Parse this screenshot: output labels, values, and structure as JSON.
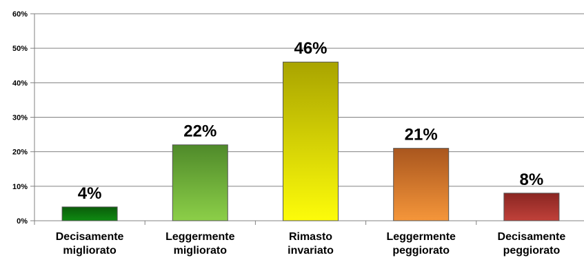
{
  "chart_data": {
    "type": "bar",
    "categories": [
      [
        "Decisamente",
        "migliorato"
      ],
      [
        "Leggermente",
        "migliorato"
      ],
      [
        "Rimasto",
        "invariato"
      ],
      [
        "Leggermente",
        "peggiorato"
      ],
      [
        "Decisamente",
        "peggiorato"
      ]
    ],
    "values": [
      4,
      22,
      46,
      21,
      8
    ],
    "data_labels": [
      "4%",
      "22%",
      "46%",
      "21%",
      "8%"
    ],
    "y_ticks": [
      {
        "value": 0,
        "label": "0%"
      },
      {
        "value": 10,
        "label": "10%"
      },
      {
        "value": 20,
        "label": "20%"
      },
      {
        "value": 30,
        "label": "30%"
      },
      {
        "value": 40,
        "label": "40%"
      },
      {
        "value": 50,
        "label": "50%"
      },
      {
        "value": 60,
        "label": "60%"
      }
    ],
    "ylim": [
      0,
      60
    ],
    "title": "",
    "xlabel": "",
    "ylabel": "",
    "grid": true,
    "legend": "none",
    "bar_colors": [
      {
        "top": "#0a5d0a",
        "bottom": "#0f8a12",
        "stroke": "#555555"
      },
      {
        "top": "#4f8a2a",
        "bottom": "#8ccf48",
        "stroke": "#555555"
      },
      {
        "top": "#a9a400",
        "bottom": "#fdfc0a",
        "stroke": "#555555"
      },
      {
        "top": "#a9561e",
        "bottom": "#f5963a",
        "stroke": "#555555"
      },
      {
        "top": "#8a2622",
        "bottom": "#c0413a",
        "stroke": "#555555"
      }
    ],
    "grid_color": "#808080",
    "axis_color": "#808080"
  }
}
